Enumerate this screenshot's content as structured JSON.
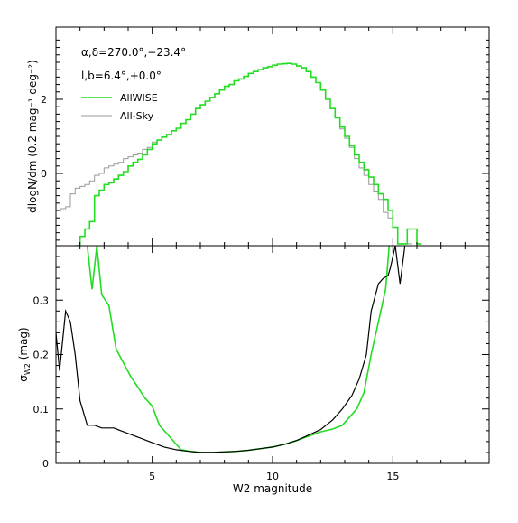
{
  "chart_data": [
    {
      "type": "line",
      "panel": "top",
      "ylabel": "dlogN/dm (0.2 mag⁻¹ deg⁻²)",
      "xlim": [
        1,
        19
      ],
      "ylim": [
        -1.95,
        3.95
      ],
      "yticks": [
        0,
        2
      ],
      "annotations": [
        "α,δ=270.0°,−23.4°",
        "l,b=6.4°,+0.0°"
      ],
      "legend_placement": "top-left",
      "series": [
        {
          "name": "AllWISE",
          "color": "#22dd22",
          "step": true,
          "x": [
            1.9,
            2.1,
            2.3,
            2.5,
            2.7,
            2.9,
            3.1,
            3.3,
            3.5,
            3.7,
            3.9,
            4.1,
            4.3,
            4.5,
            4.7,
            4.9,
            5.1,
            5.3,
            5.5,
            5.7,
            5.9,
            6.1,
            6.3,
            6.5,
            6.7,
            6.9,
            7.1,
            7.3,
            7.5,
            7.7,
            7.9,
            8.1,
            8.3,
            8.5,
            8.7,
            8.9,
            9.1,
            9.3,
            9.5,
            9.7,
            9.9,
            10.1,
            10.3,
            10.5,
            10.7,
            10.9,
            11.1,
            11.3,
            11.5,
            11.7,
            11.9,
            12.1,
            12.3,
            12.5,
            12.7,
            12.9,
            13.1,
            13.3,
            13.5,
            13.7,
            13.9,
            14.1,
            14.3,
            14.5,
            14.7,
            14.9,
            15.1,
            15.3,
            15.5,
            15.7,
            15.9,
            16.1
          ],
          "y": [
            -1.95,
            -1.7,
            -1.5,
            -1.3,
            -0.6,
            -0.45,
            -0.3,
            -0.25,
            -0.15,
            -0.05,
            0.05,
            0.2,
            0.3,
            0.38,
            0.5,
            0.65,
            0.8,
            0.9,
            0.98,
            1.05,
            1.15,
            1.22,
            1.35,
            1.45,
            1.6,
            1.75,
            1.85,
            1.95,
            2.05,
            2.15,
            2.25,
            2.35,
            2.4,
            2.5,
            2.55,
            2.62,
            2.7,
            2.75,
            2.8,
            2.85,
            2.88,
            2.92,
            2.95,
            2.96,
            2.97,
            2.95,
            2.9,
            2.85,
            2.75,
            2.6,
            2.45,
            2.25,
            2.0,
            1.75,
            1.5,
            1.25,
            1.0,
            0.75,
            0.5,
            0.3,
            0.1,
            -0.1,
            -0.3,
            -0.55,
            -0.7,
            -1.0,
            -1.45,
            -1.9,
            -1.9,
            -1.5,
            -1.5,
            -1.9
          ]
        },
        {
          "name": "All-Sky",
          "color": "#999999",
          "step": true,
          "x": [
            1.1,
            1.3,
            1.5,
            1.7,
            1.9,
            2.1,
            2.3,
            2.5,
            2.7,
            2.9,
            3.1,
            3.3,
            3.5,
            3.7,
            3.9,
            4.1,
            4.3,
            4.5,
            4.7,
            4.9,
            5.1,
            5.3,
            5.5,
            5.7,
            5.9,
            6.1,
            6.3,
            6.5,
            6.7,
            6.9,
            7.1,
            7.3,
            7.5,
            7.7,
            7.9,
            8.1,
            8.3,
            8.5,
            8.7,
            8.9,
            9.1,
            9.3,
            9.5,
            9.7,
            9.9,
            10.1,
            10.3,
            10.5,
            10.7,
            10.9,
            11.1,
            11.3,
            11.5,
            11.7,
            11.9,
            12.1,
            12.3,
            12.5,
            12.7,
            12.9,
            13.1,
            13.3,
            13.5,
            13.7,
            13.9,
            14.1,
            14.3,
            14.5,
            14.7,
            14.9,
            15.1,
            15.3,
            15.5,
            15.7
          ],
          "y": [
            -1.0,
            -0.95,
            -0.9,
            -0.55,
            -0.4,
            -0.35,
            -0.3,
            -0.2,
            -0.05,
            0.0,
            0.15,
            0.2,
            0.25,
            0.3,
            0.4,
            0.45,
            0.5,
            0.55,
            0.65,
            0.7,
            0.85,
            0.9,
            0.98,
            1.05,
            1.15,
            1.22,
            1.35,
            1.45,
            1.6,
            1.75,
            1.85,
            1.95,
            2.05,
            2.15,
            2.25,
            2.35,
            2.4,
            2.5,
            2.55,
            2.62,
            2.7,
            2.75,
            2.8,
            2.85,
            2.88,
            2.92,
            2.95,
            2.96,
            2.97,
            2.95,
            2.9,
            2.85,
            2.75,
            2.6,
            2.45,
            2.25,
            2.0,
            1.75,
            1.5,
            1.2,
            0.95,
            0.7,
            0.4,
            0.15,
            -0.05,
            -0.3,
            -0.5,
            -0.7,
            -1.05,
            -1.2,
            -1.5,
            -1.9,
            -1.9,
            -1.9
          ]
        }
      ]
    },
    {
      "type": "line",
      "panel": "bottom",
      "xlabel": "W2 magnitude",
      "ylabel": "σ",
      "ylabel_sub": "W2",
      "ylabel_suffix": " (mag)",
      "xlim": [
        1,
        19
      ],
      "ylim": [
        0,
        0.4
      ],
      "xticks": [
        5,
        10,
        15
      ],
      "yticks": [
        0,
        0.1,
        0.2,
        0.3
      ],
      "series": [
        {
          "name": "AllWISE",
          "color": "#22dd22",
          "x": [
            2.3,
            2.5,
            2.7,
            2.9,
            3.2,
            3.5,
            3.8,
            4.1,
            4.4,
            4.7,
            5.0,
            5.3,
            5.6,
            5.9,
            6.2,
            6.6,
            7.0,
            7.5,
            8.0,
            8.5,
            9.0,
            9.5,
            10.0,
            10.5,
            11.0,
            11.5,
            12.0,
            12.5,
            12.9,
            13.2,
            13.5,
            13.8,
            14.1,
            14.4,
            14.7,
            14.85
          ],
          "y": [
            0.4,
            0.32,
            0.4,
            0.31,
            0.29,
            0.21,
            0.185,
            0.16,
            0.14,
            0.12,
            0.105,
            0.07,
            0.055,
            0.04,
            0.025,
            0.022,
            0.02,
            0.02,
            0.021,
            0.022,
            0.024,
            0.027,
            0.03,
            0.035,
            0.042,
            0.05,
            0.058,
            0.063,
            0.07,
            0.085,
            0.1,
            0.13,
            0.2,
            0.26,
            0.32,
            0.4
          ]
        },
        {
          "name": "All-Sky",
          "color": "#000000",
          "x": [
            1.0,
            1.15,
            1.4,
            1.6,
            1.8,
            2.0,
            2.3,
            2.6,
            2.9,
            3.1,
            3.4,
            3.7,
            4.0,
            4.3,
            4.6,
            5.0,
            5.5,
            6.0,
            6.5,
            7.0,
            7.5,
            8.0,
            8.5,
            9.0,
            9.5,
            10.0,
            10.5,
            11.0,
            11.5,
            12.0,
            12.5,
            12.9,
            13.3,
            13.6,
            13.9,
            14.1,
            14.4,
            14.6,
            14.8,
            14.9,
            15.0,
            15.1,
            15.3,
            15.5
          ],
          "y": [
            0.24,
            0.17,
            0.28,
            0.26,
            0.2,
            0.115,
            0.07,
            0.07,
            0.065,
            0.065,
            0.065,
            0.06,
            0.055,
            0.05,
            0.045,
            0.038,
            0.03,
            0.025,
            0.022,
            0.02,
            0.02,
            0.021,
            0.022,
            0.024,
            0.027,
            0.03,
            0.035,
            0.042,
            0.052,
            0.062,
            0.08,
            0.1,
            0.125,
            0.155,
            0.2,
            0.28,
            0.33,
            0.34,
            0.345,
            0.36,
            0.38,
            0.4,
            0.33,
            0.4
          ]
        }
      ]
    }
  ]
}
